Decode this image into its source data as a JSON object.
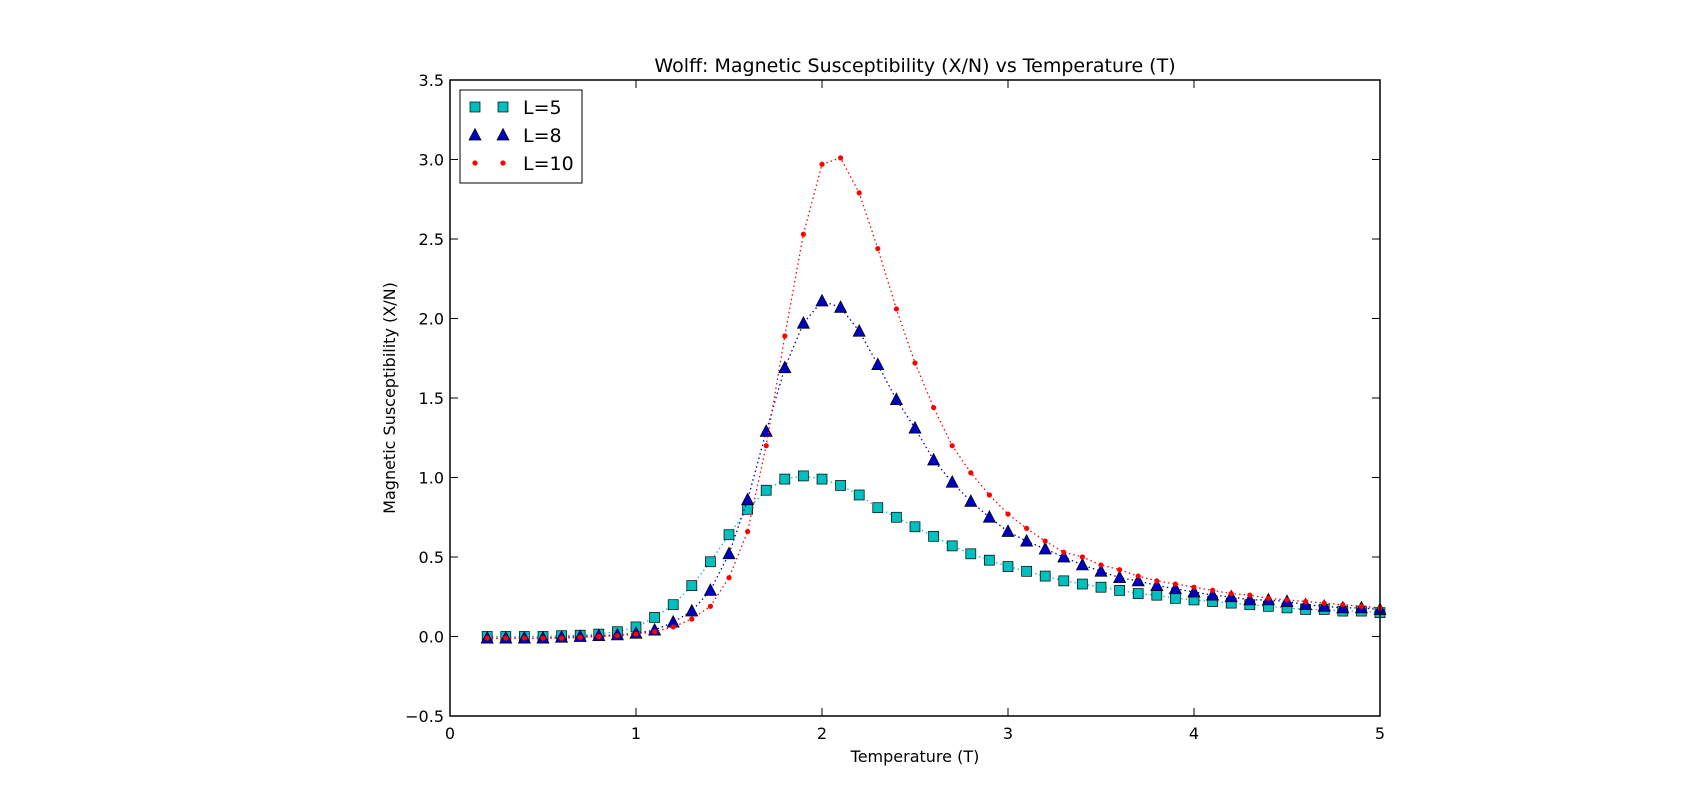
{
  "chart_data": {
    "type": "scatter",
    "title": "Wolff: Magnetic Susceptibility (X/N) vs Temperature (T)",
    "xlabel": "Temperature (T)",
    "ylabel": "Magnetic Susceptibility (X/N)",
    "xlim": [
      0,
      5
    ],
    "ylim": [
      -0.5,
      3.5
    ],
    "xticks": [
      0,
      1,
      2,
      3,
      4,
      5
    ],
    "xtick_labels": [
      "0",
      "1",
      "2",
      "3",
      "4",
      "5"
    ],
    "yticks": [
      -0.5,
      0.0,
      0.5,
      1.0,
      1.5,
      2.0,
      2.5,
      3.0,
      3.5
    ],
    "ytick_labels": [
      "−0.5",
      "0.0",
      "0.5",
      "1.0",
      "1.5",
      "2.0",
      "2.5",
      "3.0",
      "3.5"
    ],
    "grid": false,
    "legend_position": "top-left",
    "x": [
      0.2,
      0.3,
      0.4,
      0.5,
      0.6,
      0.7,
      0.8,
      0.9,
      1.0,
      1.1,
      1.2,
      1.3,
      1.4,
      1.5,
      1.6,
      1.7,
      1.8,
      1.9,
      2.0,
      2.1,
      2.2,
      2.3,
      2.4,
      2.5,
      2.6,
      2.7,
      2.8,
      2.9,
      3.0,
      3.1,
      3.2,
      3.3,
      3.4,
      3.5,
      3.6,
      3.7,
      3.8,
      3.9,
      4.0,
      4.1,
      4.2,
      4.3,
      4.4,
      4.5,
      4.6,
      4.7,
      4.8,
      4.9,
      5.0
    ],
    "series": [
      {
        "name": "L=5",
        "marker": "square",
        "color": "#00bfbf",
        "values": [
          0.0,
          0.0,
          0.0,
          0.0,
          0.005,
          0.008,
          0.015,
          0.03,
          0.06,
          0.12,
          0.2,
          0.32,
          0.47,
          0.64,
          0.8,
          0.92,
          0.99,
          1.01,
          0.99,
          0.95,
          0.89,
          0.81,
          0.75,
          0.69,
          0.63,
          0.57,
          0.52,
          0.48,
          0.44,
          0.41,
          0.38,
          0.35,
          0.33,
          0.31,
          0.29,
          0.27,
          0.26,
          0.24,
          0.23,
          0.22,
          0.21,
          0.2,
          0.19,
          0.18,
          0.17,
          0.17,
          0.16,
          0.16,
          0.15
        ]
      },
      {
        "name": "L=8",
        "marker": "triangle",
        "color": "#0000bf",
        "values": [
          -0.01,
          -0.01,
          -0.01,
          -0.01,
          -0.005,
          0.0,
          0.005,
          0.01,
          0.02,
          0.04,
          0.09,
          0.16,
          0.29,
          0.52,
          0.86,
          1.29,
          1.69,
          1.97,
          2.11,
          2.07,
          1.92,
          1.71,
          1.49,
          1.31,
          1.11,
          0.97,
          0.85,
          0.75,
          0.66,
          0.6,
          0.55,
          0.5,
          0.45,
          0.41,
          0.37,
          0.35,
          0.32,
          0.3,
          0.28,
          0.26,
          0.25,
          0.23,
          0.23,
          0.22,
          0.2,
          0.19,
          0.18,
          0.18,
          0.17
        ]
      },
      {
        "name": "L=10",
        "marker": "dot",
        "color": "#ff0000",
        "values": [
          -0.01,
          -0.01,
          -0.01,
          -0.01,
          -0.01,
          -0.005,
          0.0,
          0.005,
          0.015,
          0.03,
          0.06,
          0.11,
          0.19,
          0.37,
          0.66,
          1.2,
          1.89,
          2.53,
          2.97,
          3.01,
          2.79,
          2.44,
          2.06,
          1.72,
          1.44,
          1.2,
          1.03,
          0.89,
          0.77,
          0.68,
          0.6,
          0.53,
          0.5,
          0.45,
          0.42,
          0.38,
          0.35,
          0.33,
          0.31,
          0.29,
          0.27,
          0.26,
          0.24,
          0.23,
          0.22,
          0.21,
          0.2,
          0.19,
          0.18
        ]
      }
    ]
  }
}
